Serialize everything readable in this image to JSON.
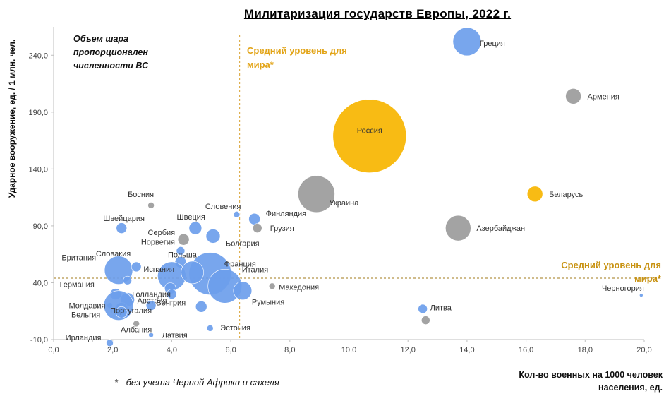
{
  "chart_data": {
    "type": "bubble",
    "title": "Милитаризация государств Европы, 2022 г.",
    "xlabel": "Кол-во военных на 1000 человек населения, ед.",
    "ylabel": "Ударное вооружение, ед. / 1 млн. чел.",
    "xlim": [
      0,
      20
    ],
    "ylim": [
      -10,
      265
    ],
    "x_ticks": [
      "0,0",
      "2,0",
      "4,0",
      "6,0",
      "8,0",
      "10,0",
      "12,0",
      "14,0",
      "16,0",
      "18,0",
      "20,0"
    ],
    "y_ticks": [
      "-10,0",
      "40,0",
      "90,0",
      "140,0",
      "190,0",
      "240,0"
    ],
    "note": "Объем шара пропорционален численности ВС",
    "footnote": "* - без учета Черной Африки и сахеля",
    "reference_lines": {
      "vertical": {
        "x": 6.3,
        "label": "Средний уровень для мира*"
      },
      "horizontal": {
        "y": 44,
        "label": "Средний уровень для мира*"
      }
    },
    "colors": {
      "blue": "#6d9eeb",
      "gray": "#9b9b9b",
      "orange": "#f7b500"
    },
    "points": [
      {
        "name": "Россия",
        "x": 10.7,
        "y": 169,
        "r": 52,
        "color": "orange",
        "label_inside": true
      },
      {
        "name": "Беларусь",
        "x": 16.3,
        "y": 118,
        "r": 11,
        "color": "orange"
      },
      {
        "name": "Греция",
        "x": 14.0,
        "y": 252,
        "r": 20,
        "color": "blue"
      },
      {
        "name": "Армения",
        "x": 17.6,
        "y": 204,
        "r": 11,
        "color": "gray"
      },
      {
        "name": "Украина",
        "x": 8.9,
        "y": 118,
        "r": 26,
        "color": "gray"
      },
      {
        "name": "Азербайджан",
        "x": 13.7,
        "y": 88,
        "r": 18,
        "color": "gray"
      },
      {
        "name": "Черногория",
        "x": 19.9,
        "y": 29,
        "r": 2.5,
        "color": "blue"
      },
      {
        "name": "Литва",
        "x": 12.5,
        "y": 17,
        "r": 6.5,
        "color": "blue"
      },
      {
        "name": "",
        "x": 12.6,
        "y": 7,
        "r": 6,
        "color": "gray"
      },
      {
        "name": "Македония",
        "x": 7.4,
        "y": 37,
        "r": 4.5,
        "color": "gray"
      },
      {
        "name": "Финляндия",
        "x": 6.8,
        "y": 96,
        "r": 8,
        "color": "blue"
      },
      {
        "name": "Грузия",
        "x": 6.9,
        "y": 88,
        "r": 6.5,
        "color": "gray"
      },
      {
        "name": "Словения",
        "x": 6.2,
        "y": 100,
        "r": 4.5,
        "color": "blue"
      },
      {
        "name": "Болгария",
        "x": 5.4,
        "y": 81,
        "r": 10,
        "color": "blue"
      },
      {
        "name": "Швеция",
        "x": 4.8,
        "y": 88,
        "r": 9,
        "color": "blue"
      },
      {
        "name": "Сербия",
        "x": 4.4,
        "y": 78,
        "r": 8,
        "color": "gray"
      },
      {
        "name": "Польша",
        "x": 4.3,
        "y": 58,
        "r": 8,
        "color": "blue"
      },
      {
        "name": "Норвегия",
        "x": 4.3,
        "y": 68,
        "r": 6,
        "color": "blue"
      },
      {
        "name": "Франция",
        "x": 5.3,
        "y": 48,
        "r": 30,
        "color": "blue"
      },
      {
        "name": "Италия",
        "x": 5.8,
        "y": 37,
        "r": 24,
        "color": "blue"
      },
      {
        "name": "Румыния",
        "x": 6.4,
        "y": 33,
        "r": 13,
        "color": "blue"
      },
      {
        "name": "Испания",
        "x": 4.0,
        "y": 46,
        "r": 20,
        "color": "blue"
      },
      {
        "name": "",
        "x": 4.7,
        "y": 49,
        "r": 16,
        "color": "blue"
      },
      {
        "name": "Голландия",
        "x": 3.95,
        "y": 35,
        "r": 8,
        "color": "blue"
      },
      {
        "name": "Венгрия",
        "x": 4.0,
        "y": 30,
        "r": 7,
        "color": "blue"
      },
      {
        "name": "Эстония",
        "x": 5.3,
        "y": 0,
        "r": 4.5,
        "color": "blue"
      },
      {
        "name": "",
        "x": 5.0,
        "y": 19,
        "r": 8,
        "color": "blue"
      },
      {
        "name": "Португалия",
        "x": 3.3,
        "y": 20,
        "r": 7,
        "color": "blue"
      },
      {
        "name": "Латвия",
        "x": 3.3,
        "y": -6,
        "r": 3.5,
        "color": "blue"
      },
      {
        "name": "Албания",
        "x": 2.8,
        "y": 4,
        "r": 4.5,
        "color": "gray"
      },
      {
        "name": "Ирландия",
        "x": 1.9,
        "y": -13,
        "r": 5,
        "color": "blue"
      },
      {
        "name": "Босния",
        "x": 3.3,
        "y": 108,
        "r": 4.5,
        "color": "gray"
      },
      {
        "name": "Швейцария",
        "x": 2.3,
        "y": 88,
        "r": 7.5,
        "color": "blue"
      },
      {
        "name": "Британия",
        "x": 2.2,
        "y": 51,
        "r": 20,
        "color": "blue"
      },
      {
        "name": "Словакия",
        "x": 2.8,
        "y": 54,
        "r": 7,
        "color": "blue"
      },
      {
        "name": "",
        "x": 2.5,
        "y": 42,
        "r": 6,
        "color": "blue"
      },
      {
        "name": "Германия",
        "x": 2.1,
        "y": 30,
        "r": 8,
        "color": "blue"
      },
      {
        "name": "Австрия",
        "x": 2.5,
        "y": 25,
        "r": 10,
        "color": "blue"
      },
      {
        "name": "Бельгия",
        "x": 2.3,
        "y": 17,
        "r": 9,
        "color": "blue"
      },
      {
        "name": "Молдавия",
        "x": 1.9,
        "y": 20,
        "r": 4,
        "color": "blue"
      },
      {
        "name": "",
        "x": 2.2,
        "y": 20,
        "r": 21,
        "color": "blue"
      },
      {
        "name": "",
        "x": 2.3,
        "y": 14,
        "r": 8,
        "color": "blue"
      }
    ]
  }
}
